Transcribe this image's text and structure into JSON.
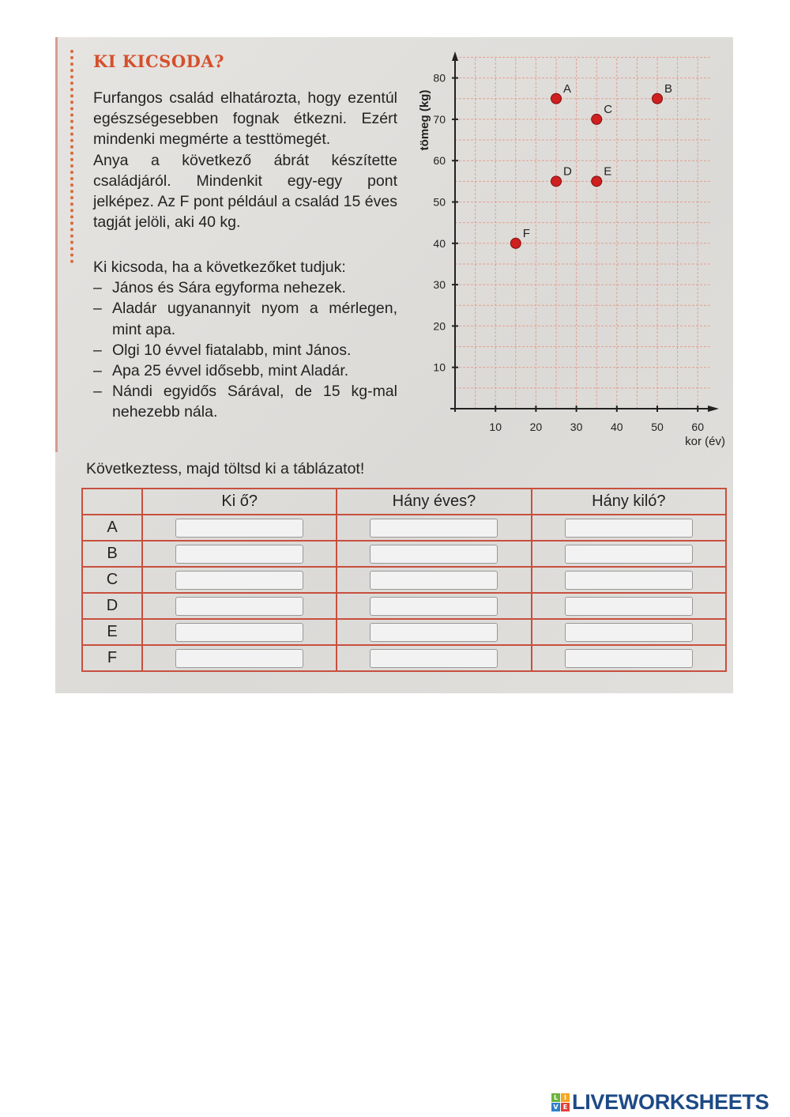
{
  "title": "KI KICSODA?",
  "intro": "Furfangos család elhatározta, hogy ezentúl egészségesebben fognak étkezni. Ezért mindenki megmérte a testtömegét.",
  "intro2": "Anya a következő ábrát készítette családjáról. Mindenkit egy-egy pont jelképez. Az F pont például a család 15 éves tagját jelöli, aki 40 kg.",
  "question": "Ki kicsoda, ha a következőket tudjuk:",
  "rules": [
    "János és Sára egyforma nehezek.",
    "Aladár ugyanannyit nyom a mérlegen, mint apa.",
    "Olgi 10 évvel fiatalabb, mint János.",
    "Apa 25 évvel idősebb, mint Aladár.",
    "Nándi egyidős Sárával, de 15 kg-mal nehezebb nála."
  ],
  "dash": "–",
  "instruction": "Következtess, majd töltsd ki a táblázatot!",
  "table": {
    "headers": [
      "",
      "Ki ő?",
      "Hány éves?",
      "Hány kiló?"
    ],
    "rows": [
      "A",
      "B",
      "C",
      "D",
      "E",
      "F"
    ]
  },
  "chart_data": {
    "type": "scatter",
    "xlabel": "kor (év)",
    "ylabel": "tömeg (kg)",
    "xlim": [
      0,
      63
    ],
    "ylim": [
      0,
      85
    ],
    "xticks": [
      10,
      20,
      30,
      40,
      50,
      60
    ],
    "yticks": [
      10,
      20,
      30,
      40,
      50,
      60,
      70,
      80
    ],
    "grid": true,
    "points": [
      {
        "label": "A",
        "x": 25,
        "y": 75
      },
      {
        "label": "B",
        "x": 50,
        "y": 75
      },
      {
        "label": "C",
        "x": 35,
        "y": 70
      },
      {
        "label": "D",
        "x": 25,
        "y": 55
      },
      {
        "label": "E",
        "x": 35,
        "y": 55
      },
      {
        "label": "F",
        "x": 15,
        "y": 40
      }
    ],
    "colors": {
      "point": "#d01f1f",
      "grid": "#e0a090",
      "axis": "#222222"
    }
  },
  "logo": {
    "text": "LIVEWORKSHEETS",
    "tiles": [
      "L",
      "I",
      "V",
      "E"
    ],
    "color": "#1d4a86"
  }
}
